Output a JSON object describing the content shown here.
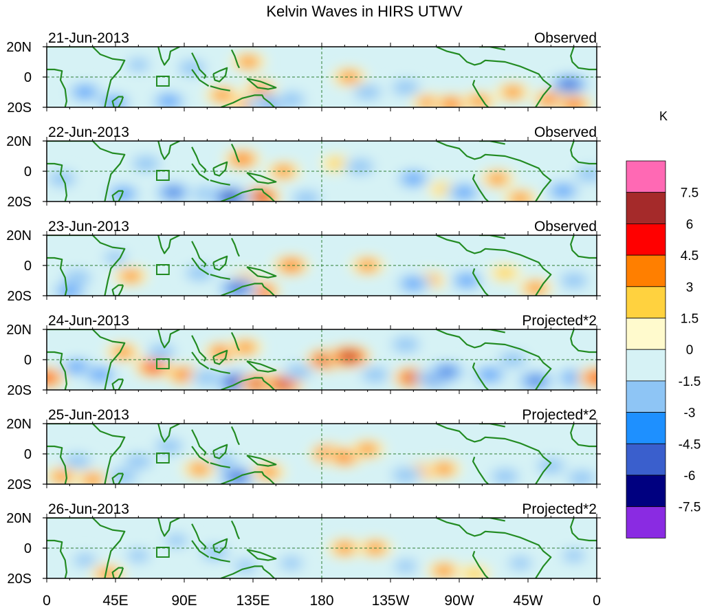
{
  "title": "Kelvin Waves in HIRS UTWV",
  "colorbar": {
    "unit": "K",
    "colors": [
      "#8a2be2",
      "#000080",
      "#3a5fcd",
      "#1e90ff",
      "#8ec5f5",
      "#d6f2f5",
      "#fffacd",
      "#ffd23f",
      "#ff7f00",
      "#ff0000",
      "#a52a2a",
      "#ff69b4"
    ],
    "labels": [
      "-7.5",
      "-6",
      "-4.5",
      "-3",
      "-1.5",
      "0",
      "1.5",
      "3",
      "4.5",
      "6",
      "7.5"
    ]
  },
  "lat_ticks": [
    "20N",
    "0",
    "20S"
  ],
  "lon_ticks": [
    "0",
    "45E",
    "90E",
    "135E",
    "180",
    "135W",
    "90W",
    "45W",
    "0"
  ],
  "panels": [
    {
      "date": "21-Jun-2013",
      "type": "Observed",
      "blobs": [
        [
          128,
          -17,
          3
        ],
        [
          138,
          -18,
          8
        ],
        [
          132,
          10,
          3
        ],
        [
          140,
          -8,
          3
        ],
        [
          115,
          -12,
          3
        ],
        [
          25,
          -10,
          -4
        ],
        [
          44,
          -17,
          -4
        ],
        [
          80,
          -16,
          -4
        ],
        [
          95,
          6,
          -3
        ],
        [
          143,
          -18,
          -5
        ],
        [
          150,
          -17,
          -5
        ],
        [
          160,
          -15,
          -3
        ],
        [
          198,
          0,
          3
        ],
        [
          235,
          -7,
          -3
        ],
        [
          250,
          -17,
          3
        ],
        [
          265,
          -18,
          4
        ],
        [
          283,
          -16,
          3
        ],
        [
          305,
          -10,
          3
        ],
        [
          330,
          -15,
          4
        ],
        [
          345,
          -18,
          4
        ],
        [
          342,
          -5,
          -6
        ],
        [
          60,
          8,
          -2
        ],
        [
          210,
          -10,
          -3
        ]
      ]
    },
    {
      "date": "22-Jun-2013",
      "type": "Observed",
      "blobs": [
        [
          130,
          -17,
          5
        ],
        [
          140,
          -17,
          6
        ],
        [
          128,
          8,
          4
        ],
        [
          155,
          0,
          3
        ],
        [
          10,
          -5,
          -3
        ],
        [
          50,
          -15,
          -4
        ],
        [
          65,
          5,
          -3
        ],
        [
          83,
          -14,
          -5
        ],
        [
          105,
          -15,
          -3
        ],
        [
          120,
          -17,
          -7
        ],
        [
          170,
          -18,
          -3
        ],
        [
          190,
          5,
          2
        ],
        [
          205,
          3,
          -3
        ],
        [
          240,
          -5,
          -4
        ],
        [
          260,
          -12,
          2
        ],
        [
          273,
          -14,
          -4
        ],
        [
          295,
          -5,
          3
        ],
        [
          310,
          -18,
          3
        ],
        [
          338,
          -13,
          -4
        ],
        [
          355,
          -2,
          -3
        ]
      ]
    },
    {
      "date": "23-Jun-2013",
      "type": "Observed",
      "blobs": [
        [
          140,
          -17,
          5
        ],
        [
          130,
          -10,
          3
        ],
        [
          160,
          0,
          4
        ],
        [
          55,
          -7,
          3
        ],
        [
          45,
          5,
          -2
        ],
        [
          20,
          -8,
          -3
        ],
        [
          15,
          -17,
          -4
        ],
        [
          125,
          -15,
          -6
        ],
        [
          100,
          -5,
          -3
        ],
        [
          210,
          0,
          3
        ],
        [
          250,
          -10,
          3
        ],
        [
          240,
          -12,
          -4
        ],
        [
          275,
          -10,
          -4
        ],
        [
          300,
          -5,
          2
        ],
        [
          320,
          -15,
          3
        ],
        [
          345,
          -10,
          -3
        ]
      ]
    },
    {
      "date": "24-Jun-2013",
      "type": "Projected*2",
      "blobs": [
        [
          70,
          -5,
          5
        ],
        [
          90,
          -10,
          4
        ],
        [
          105,
          -12,
          -3
        ],
        [
          125,
          -15,
          -8
        ],
        [
          140,
          -16,
          6
        ],
        [
          155,
          -16,
          6
        ],
        [
          165,
          -8,
          -3
        ],
        [
          183,
          0,
          6
        ],
        [
          198,
          2,
          7
        ],
        [
          215,
          -10,
          -3
        ],
        [
          240,
          -12,
          6
        ],
        [
          255,
          -12,
          -6
        ],
        [
          262,
          -8,
          -5
        ],
        [
          290,
          -10,
          -4
        ],
        [
          305,
          0,
          -3
        ],
        [
          320,
          -14,
          -5
        ],
        [
          345,
          -12,
          -4
        ],
        [
          360,
          -12,
          5
        ],
        [
          0,
          -12,
          5
        ],
        [
          20,
          -5,
          -4
        ],
        [
          35,
          -10,
          -4
        ],
        [
          50,
          5,
          3
        ],
        [
          75,
          5,
          -3
        ],
        [
          115,
          5,
          4
        ],
        [
          130,
          8,
          3
        ],
        [
          235,
          10,
          -3
        ]
      ]
    },
    {
      "date": "25-Jun-2013",
      "type": "Projected*2",
      "blobs": [
        [
          185,
          0,
          5
        ],
        [
          195,
          -2,
          4
        ],
        [
          210,
          3,
          3
        ],
        [
          245,
          -12,
          4
        ],
        [
          260,
          -10,
          3
        ],
        [
          125,
          -15,
          -6
        ],
        [
          115,
          -5,
          -3
        ],
        [
          80,
          5,
          -3
        ],
        [
          60,
          -5,
          -3
        ],
        [
          100,
          -10,
          3
        ],
        [
          145,
          -12,
          3
        ],
        [
          20,
          -5,
          -3
        ],
        [
          10,
          -15,
          3
        ],
        [
          30,
          -17,
          3
        ],
        [
          50,
          -15,
          -3
        ],
        [
          300,
          -15,
          -3
        ],
        [
          330,
          -8,
          -3
        ],
        [
          350,
          -16,
          -3
        ],
        [
          235,
          -14,
          -3
        ]
      ]
    },
    {
      "date": "26-Jun-2013",
      "type": "Projected*2",
      "blobs": [
        [
          195,
          0,
          3
        ],
        [
          215,
          0,
          3
        ],
        [
          260,
          -15,
          3
        ],
        [
          280,
          -17,
          2
        ],
        [
          110,
          -3,
          -3
        ],
        [
          130,
          -12,
          -2
        ],
        [
          160,
          -10,
          -2
        ],
        [
          60,
          -5,
          -2
        ],
        [
          25,
          -8,
          -2
        ],
        [
          85,
          5,
          -2
        ],
        [
          310,
          -10,
          -2
        ],
        [
          345,
          -5,
          -2
        ],
        [
          235,
          -12,
          -2
        ],
        [
          40,
          -17,
          3
        ]
      ]
    }
  ]
}
